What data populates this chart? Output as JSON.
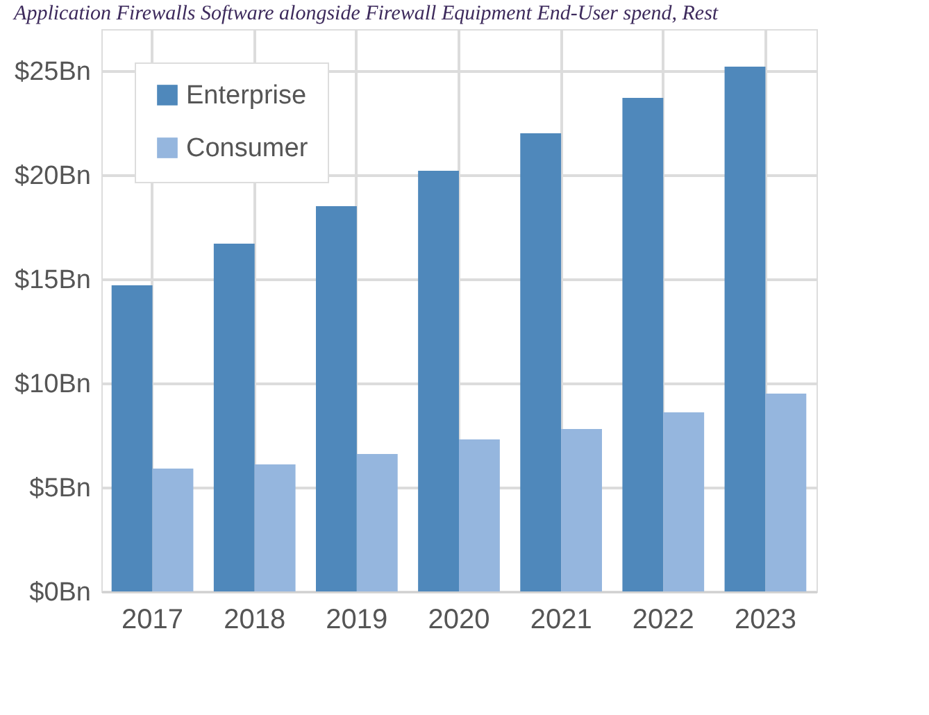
{
  "chart_data": {
    "type": "bar",
    "title": "Application Firewalls Software alongside Firewall Equipment End-User spend, Rest",
    "categories": [
      "2017",
      "2018",
      "2019",
      "2020",
      "2021",
      "2022",
      "2023"
    ],
    "series": [
      {
        "name": "Enterprise",
        "color": "#4f88bb",
        "values": [
          14.7,
          16.7,
          18.5,
          20.2,
          22.0,
          23.7,
          25.2
        ]
      },
      {
        "name": "Consumer",
        "color": "#95b6de",
        "values": [
          5.9,
          6.1,
          6.6,
          7.3,
          7.8,
          8.6,
          9.5
        ]
      }
    ],
    "ylim": [
      0,
      27
    ],
    "yticks": [
      {
        "value": 0,
        "label": "$0Bn"
      },
      {
        "value": 5,
        "label": "$5Bn"
      },
      {
        "value": 10,
        "label": "$10Bn"
      },
      {
        "value": 15,
        "label": "$15Bn"
      },
      {
        "value": 20,
        "label": "$20Bn"
      },
      {
        "value": 25,
        "label": "$25Bn"
      }
    ],
    "grid": true,
    "legend": "top left"
  }
}
